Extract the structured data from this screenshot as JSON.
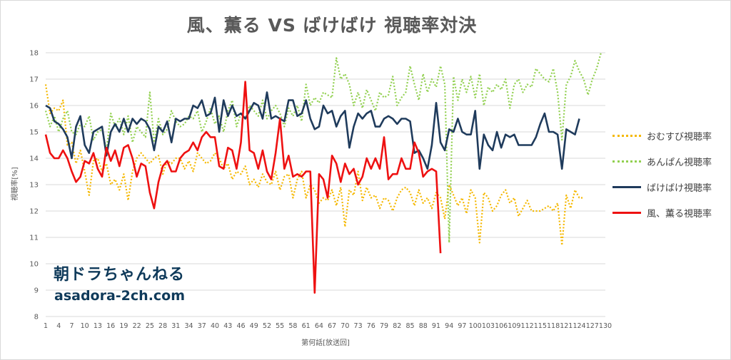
{
  "chart_data": {
    "type": "line",
    "title": "風、薫る VS ばけばけ 視聴率対決",
    "xlabel": "第何話[放送回]",
    "ylabel": "視聴率[%]",
    "ylim": [
      8,
      18
    ],
    "yticks": [
      8,
      9,
      10,
      11,
      12,
      13,
      14,
      15,
      16,
      17,
      18
    ],
    "xlim": [
      1,
      130
    ],
    "xticks": [
      1,
      4,
      7,
      10,
      13,
      16,
      19,
      22,
      25,
      28,
      31,
      34,
      37,
      40,
      43,
      46,
      49,
      52,
      55,
      58,
      61,
      64,
      67,
      70,
      73,
      76,
      79,
      82,
      85,
      88,
      91,
      94,
      97,
      100,
      103,
      106,
      109,
      112,
      115,
      118,
      121,
      124,
      127,
      130
    ],
    "grid": true,
    "legend_position": "right",
    "series": [
      {
        "name": "おむすび視聴率",
        "color": "#f5b800",
        "style": "dotted",
        "values": [
          16.8,
          15.7,
          15.9,
          15.8,
          16.2,
          14.5,
          14.6,
          13.8,
          14.3,
          13.5,
          12.6,
          13.9,
          14.0,
          13.5,
          13.8,
          13.0,
          13.2,
          12.8,
          13.4,
          12.4,
          13.5,
          14.0,
          14.2,
          14.0,
          13.8,
          14.0,
          14.1,
          13.4,
          13.9,
          13.8,
          14.0,
          14.0,
          13.6,
          13.9,
          13.5,
          14.2,
          14.0,
          13.8,
          13.9,
          14.2,
          14.0,
          13.6,
          13.8,
          13.2,
          13.5,
          13.4,
          13.7,
          13.0,
          13.2,
          12.9,
          13.4,
          13.1,
          13.0,
          13.5,
          12.8,
          13.3,
          13.4,
          12.5,
          13.2,
          13.5,
          12.5,
          13.0,
          12.8,
          12.3,
          12.5,
          12.4,
          12.8,
          12.2,
          12.9,
          11.4,
          12.8,
          12.6,
          13.5,
          12.4,
          12.9,
          12.5,
          12.6,
          12.1,
          12.5,
          12.4,
          12.0,
          12.5,
          12.8,
          12.9,
          12.7,
          12.2,
          12.8,
          12.3,
          12.5,
          12.1,
          12.7,
          12.5,
          11.7,
          13.0,
          12.6,
          12.2,
          12.5,
          11.9,
          12.8,
          12.5,
          10.8,
          12.7,
          12.5,
          12.0,
          12.2,
          12.6,
          12.8,
          12.3,
          12.5,
          11.8,
          12.1,
          12.4,
          12.0,
          12.0,
          12.0,
          12.1,
          12.2,
          12.0,
          12.3,
          10.7,
          12.6,
          12.1,
          12.8,
          12.5,
          12.5
        ]
      },
      {
        "name": "あんぱん視聴率",
        "color": "#92d050",
        "style": "dotted",
        "values": [
          15.8,
          15.2,
          15.6,
          15.0,
          15.5,
          15.8,
          15.0,
          14.9,
          15.3,
          15.2,
          15.6,
          14.7,
          15.0,
          15.1,
          14.3,
          15.7,
          15.2,
          15.5,
          14.9,
          15.6,
          14.6,
          15.2,
          15.0,
          14.8,
          16.5,
          14.6,
          15.5,
          14.9,
          15.1,
          15.8,
          15.4,
          15.2,
          15.3,
          15.6,
          15.5,
          15.8,
          15.0,
          15.4,
          15.9,
          15.3,
          15.6,
          15.0,
          15.8,
          16.2,
          15.2,
          15.7,
          15.5,
          16.0,
          15.8,
          15.6,
          16.2,
          15.5,
          15.8,
          16.0,
          15.7,
          15.2,
          15.9,
          15.6,
          16.0,
          15.4,
          16.8,
          16.0,
          16.3,
          16.1,
          16.5,
          16.4,
          16.3,
          17.8,
          17.0,
          17.2,
          16.8,
          16.0,
          16.5,
          15.9,
          16.6,
          16.2,
          15.8,
          16.5,
          16.3,
          16.4,
          17.1,
          16.0,
          16.3,
          16.5,
          17.5,
          16.8,
          16.2,
          17.2,
          16.5,
          17.0,
          16.7,
          17.5,
          16.8,
          10.8,
          17.1,
          16.2,
          17.0,
          16.5,
          17.1,
          16.3,
          17.2,
          16.0,
          16.7,
          16.5,
          16.8,
          16.6,
          17.0,
          15.9,
          16.8,
          17.0,
          16.5,
          16.8,
          16.7,
          17.4,
          17.2,
          17.0,
          16.9,
          17.4,
          16.5,
          14.7,
          16.8,
          17.1,
          17.7,
          17.3,
          17.0,
          16.4,
          17.0,
          17.4,
          18.0
        ]
      },
      {
        "name": "ばけばけ視聴率",
        "color": "#1f3b5c",
        "style": "solid",
        "values": [
          16.0,
          15.9,
          15.4,
          15.3,
          15.1,
          14.8,
          14.0,
          15.2,
          15.6,
          14.5,
          14.2,
          15.0,
          15.1,
          15.2,
          14.1,
          15.0,
          15.3,
          15.0,
          15.5,
          15.0,
          15.5,
          15.3,
          15.5,
          15.4,
          15.1,
          14.3,
          15.2,
          15.0,
          15.4,
          14.6,
          15.5,
          15.4,
          15.5,
          15.5,
          16.0,
          15.9,
          16.2,
          15.6,
          15.7,
          16.3,
          15.0,
          16.2,
          15.6,
          16.0,
          15.6,
          15.7,
          15.5,
          15.8,
          16.1,
          16.0,
          15.5,
          16.5,
          15.5,
          15.6,
          15.5,
          15.4,
          16.2,
          16.2,
          15.6,
          15.7,
          16.2,
          15.5,
          15.1,
          15.2,
          16.0,
          15.7,
          15.8,
          15.2,
          15.6,
          15.8,
          14.4,
          15.2,
          15.7,
          15.5,
          15.7,
          15.8,
          15.2,
          15.2,
          15.5,
          15.6,
          15.5,
          15.3,
          15.5,
          15.5,
          15.4,
          14.2,
          14.3,
          14.0,
          13.6,
          14.5,
          16.1,
          14.6,
          14.3,
          15.1,
          15.0,
          15.5,
          15.0,
          14.9,
          14.9,
          15.8,
          13.6,
          14.9,
          14.5,
          14.3,
          15.0,
          14.4,
          14.9,
          14.8,
          14.9,
          14.5,
          14.5,
          14.5,
          14.5,
          14.8,
          15.3,
          15.7,
          15.0,
          15.0,
          14.9,
          13.6,
          15.1,
          15.0,
          14.9,
          15.5
        ]
      },
      {
        "name": "風、薫る視聴率",
        "color": "#ee1111",
        "style": "solid",
        "values": [
          14.9,
          14.2,
          14.0,
          14.0,
          14.3,
          14.0,
          13.5,
          13.1,
          13.3,
          13.9,
          13.8,
          14.2,
          13.6,
          13.3,
          14.4,
          13.9,
          14.3,
          13.7,
          14.4,
          14.5,
          14.0,
          13.3,
          13.8,
          13.7,
          12.7,
          12.1,
          13.1,
          13.7,
          13.9,
          13.5,
          13.5,
          14.0,
          14.2,
          14.3,
          14.6,
          14.3,
          14.8,
          15.0,
          14.8,
          14.8,
          13.7,
          13.6,
          14.4,
          14.3,
          13.6,
          14.6,
          16.9,
          14.3,
          14.2,
          13.6,
          14.3,
          13.5,
          13.2,
          14.2,
          15.5,
          13.6,
          14.1,
          13.3,
          13.4,
          13.3,
          13.5,
          13.5,
          8.9,
          13.4,
          13.2,
          12.5,
          14.1,
          13.8,
          13.1,
          13.8,
          13.4,
          13.6,
          13.0,
          13.3,
          14.0,
          13.6,
          14.0,
          13.6,
          14.8,
          13.2,
          13.4,
          13.4,
          14.0,
          13.6,
          13.6,
          14.6,
          14.2,
          13.3,
          13.5,
          13.6,
          13.5,
          10.4
        ]
      }
    ]
  },
  "watermark": {
    "title": "朝ドラちゃんねる",
    "url": "asadora-2ch.com"
  }
}
